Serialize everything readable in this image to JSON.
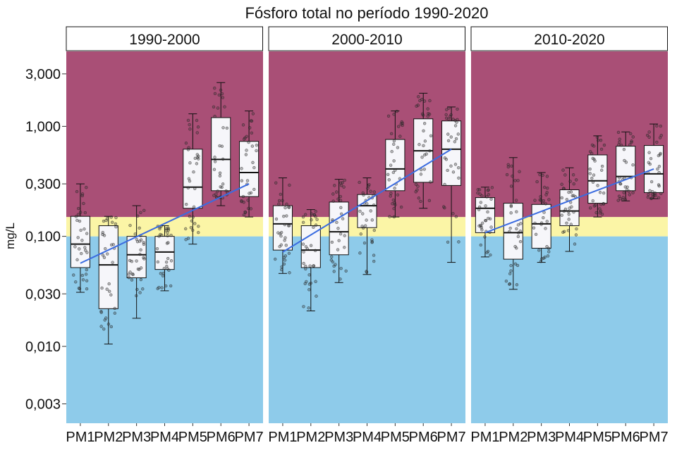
{
  "chart_data": {
    "type": "boxplot",
    "title": "Fósforo total no período 1990-2020",
    "ylabel": "mg/L",
    "xlabel": "",
    "y_scale": "log10",
    "ylim": [
      0.002,
      4.8
    ],
    "y_ticks": [
      {
        "value": 0.003,
        "label": "0,003"
      },
      {
        "value": 0.01,
        "label": "0,010"
      },
      {
        "value": 0.03,
        "label": "0,030"
      },
      {
        "value": 0.1,
        "label": "0,100"
      },
      {
        "value": 0.3,
        "label": "0,300"
      },
      {
        "value": 1,
        "label": "1,000"
      },
      {
        "value": 3,
        "label": "3,000"
      }
    ],
    "categories": [
      "PM1",
      "PM2",
      "PM3",
      "PM4",
      "PM5",
      "PM6",
      "PM7"
    ],
    "background_bands": [
      {
        "from": 0.002,
        "to": 0.1,
        "color": "#8ecbea"
      },
      {
        "from": 0.1,
        "to": 0.15,
        "color": "#fbf5a6"
      },
      {
        "from": 0.15,
        "to": 4.8,
        "color": "#a94f76"
      }
    ],
    "colors": {
      "box_fill": "#f6f6fa",
      "trend": "#3b6ce0",
      "strip_bg": "#ffffff"
    },
    "panels": [
      {
        "label": "1990-2000",
        "boxes": [
          {
            "q1": 0.052,
            "median": 0.085,
            "q3": 0.152,
            "whisker_low": 0.031,
            "whisker_high": 0.3
          },
          {
            "q1": 0.022,
            "median": 0.055,
            "q3": 0.125,
            "whisker_low": 0.0105,
            "whisker_high": 0.152
          },
          {
            "q1": 0.042,
            "median": 0.068,
            "q3": 0.1,
            "whisker_low": 0.018,
            "whisker_high": 0.19
          },
          {
            "q1": 0.05,
            "median": 0.072,
            "q3": 0.1,
            "whisker_low": 0.032,
            "whisker_high": 0.125
          },
          {
            "q1": 0.18,
            "median": 0.28,
            "q3": 0.62,
            "whisker_low": 0.085,
            "whisker_high": 1.3
          },
          {
            "q1": 0.26,
            "median": 0.5,
            "q3": 1.2,
            "whisker_low": 0.19,
            "whisker_high": 2.5
          },
          {
            "q1": 0.23,
            "median": 0.38,
            "q3": 0.73,
            "whisker_low": 0.15,
            "whisker_high": 1.38
          }
        ],
        "trend": [
          0.057,
          0.3
        ]
      },
      {
        "label": "2000-2010",
        "boxes": [
          {
            "q1": 0.075,
            "median": 0.13,
            "q3": 0.19,
            "whisker_low": 0.046,
            "whisker_high": 0.34
          },
          {
            "q1": 0.052,
            "median": 0.075,
            "q3": 0.125,
            "whisker_low": 0.021,
            "whisker_high": 0.175
          },
          {
            "q1": 0.068,
            "median": 0.11,
            "q3": 0.205,
            "whisker_low": 0.038,
            "whisker_high": 0.33
          },
          {
            "q1": 0.12,
            "median": 0.19,
            "q3": 0.24,
            "whisker_low": 0.045,
            "whisker_high": 0.34
          },
          {
            "q1": 0.26,
            "median": 0.41,
            "q3": 0.76,
            "whisker_low": 0.15,
            "whisker_high": 1.38
          },
          {
            "q1": 0.31,
            "median": 0.6,
            "q3": 1.17,
            "whisker_low": 0.18,
            "whisker_high": 2.0
          },
          {
            "q1": 0.29,
            "median": 0.62,
            "q3": 1.12,
            "whisker_low": 0.058,
            "whisker_high": 1.5
          }
        ],
        "trend": [
          0.072,
          0.62
        ]
      },
      {
        "label": "2010-2020",
        "boxes": [
          {
            "q1": 0.108,
            "median": 0.18,
            "q3": 0.225,
            "whisker_low": 0.065,
            "whisker_high": 0.28
          },
          {
            "q1": 0.062,
            "median": 0.108,
            "q3": 0.2,
            "whisker_low": 0.033,
            "whisker_high": 0.52
          },
          {
            "q1": 0.078,
            "median": 0.13,
            "q3": 0.195,
            "whisker_low": 0.058,
            "whisker_high": 0.38
          },
          {
            "q1": 0.125,
            "median": 0.17,
            "q3": 0.265,
            "whisker_low": 0.073,
            "whisker_high": 0.42
          },
          {
            "q1": 0.2,
            "median": 0.32,
            "q3": 0.55,
            "whisker_low": 0.15,
            "whisker_high": 0.82
          },
          {
            "q1": 0.26,
            "median": 0.35,
            "q3": 0.66,
            "whisker_low": 0.21,
            "whisker_high": 0.89
          },
          {
            "q1": 0.25,
            "median": 0.37,
            "q3": 0.67,
            "whisker_low": 0.22,
            "whisker_high": 1.05
          }
        ],
        "trend": [
          0.108,
          0.41
        ]
      }
    ],
    "grid": false,
    "legend": "none"
  }
}
